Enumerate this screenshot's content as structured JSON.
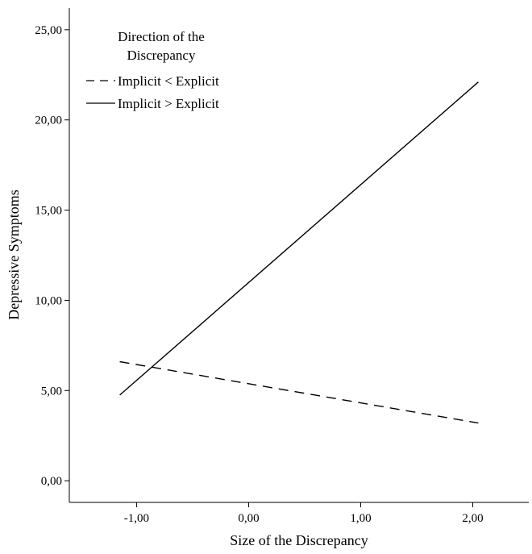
{
  "chart_data": {
    "type": "line",
    "xlabel": "Size of the Discrepancy",
    "ylabel": "Depressive Symptoms",
    "xlim": [
      -1.6,
      2.5
    ],
    "ylim": [
      -1.2,
      26.2
    ],
    "xticks": [
      -1,
      0,
      1,
      2
    ],
    "xtick_labels": [
      "-1,00",
      "0,00",
      "1,00",
      "2,00"
    ],
    "yticks": [
      0,
      5,
      10,
      15,
      20,
      25
    ],
    "ytick_labels": [
      "0,00",
      "5,00",
      "10,00",
      "15,00",
      "20,00",
      "25,00"
    ],
    "grid": false,
    "legend": {
      "title_lines": [
        "Direction of the",
        "Discrepancy"
      ],
      "placement": "top-left"
    },
    "series": [
      {
        "name": "Implicit < Explicit",
        "style": "dashed",
        "color": "#000000",
        "x": [
          -1.15,
          2.05
        ],
        "y": [
          6.6,
          3.2
        ]
      },
      {
        "name": "Implicit > Explicit",
        "style": "solid",
        "color": "#000000",
        "x": [
          -1.15,
          2.05
        ],
        "y": [
          4.75,
          22.1
        ]
      }
    ]
  }
}
